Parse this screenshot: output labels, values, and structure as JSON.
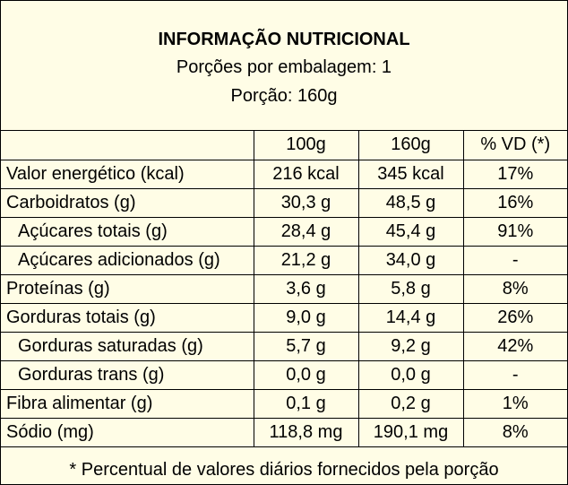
{
  "header": {
    "title": "INFORMAÇÃO NUTRICIONAL",
    "servings": "Porções por embalagem: 1",
    "portion": "Porção: 160g"
  },
  "table": {
    "columns": [
      "",
      "100g",
      "160g",
      "% VD (*)"
    ],
    "rows": [
      {
        "label": "Valor energético (kcal)",
        "per100": "216 kcal",
        "per_portion": "345 kcal",
        "vd": "17%",
        "indent": false
      },
      {
        "label": "Carboidratos (g)",
        "per100": "30,3 g",
        "per_portion": "48,5 g",
        "vd": "16%",
        "indent": false
      },
      {
        "label": "Açúcares totais (g)",
        "per100": "28,4 g",
        "per_portion": "45,4 g",
        "vd": "91%",
        "indent": true
      },
      {
        "label": "Açúcares adicionados (g)",
        "per100": "21,2 g",
        "per_portion": "34,0 g",
        "vd": "-",
        "indent": true
      },
      {
        "label": "Proteínas (g)",
        "per100": "3,6 g",
        "per_portion": "5,8 g",
        "vd": "8%",
        "indent": false
      },
      {
        "label": "Gorduras totais (g)",
        "per100": "9,0 g",
        "per_portion": "14,4 g",
        "vd": "26%",
        "indent": false
      },
      {
        "label": "Gorduras saturadas (g)",
        "per100": "5,7 g",
        "per_portion": "9,2 g",
        "vd": "42%",
        "indent": true
      },
      {
        "label": "Gorduras trans (g)",
        "per100": "0,0 g",
        "per_portion": "0,0 g",
        "vd": "-",
        "indent": true
      },
      {
        "label": "Fibra alimentar (g)",
        "per100": "0,1 g",
        "per_portion": "0,2 g",
        "vd": "1%",
        "indent": false
      },
      {
        "label": "Sódio (mg)",
        "per100": "118,8 mg",
        "per_portion": "190,1 mg",
        "vd": "8%",
        "indent": false
      }
    ]
  },
  "footnote": "* Percentual de valores diários fornecidos pela porção",
  "colors": {
    "background": "#fffde6",
    "border": "#000000",
    "text": "#000000"
  }
}
